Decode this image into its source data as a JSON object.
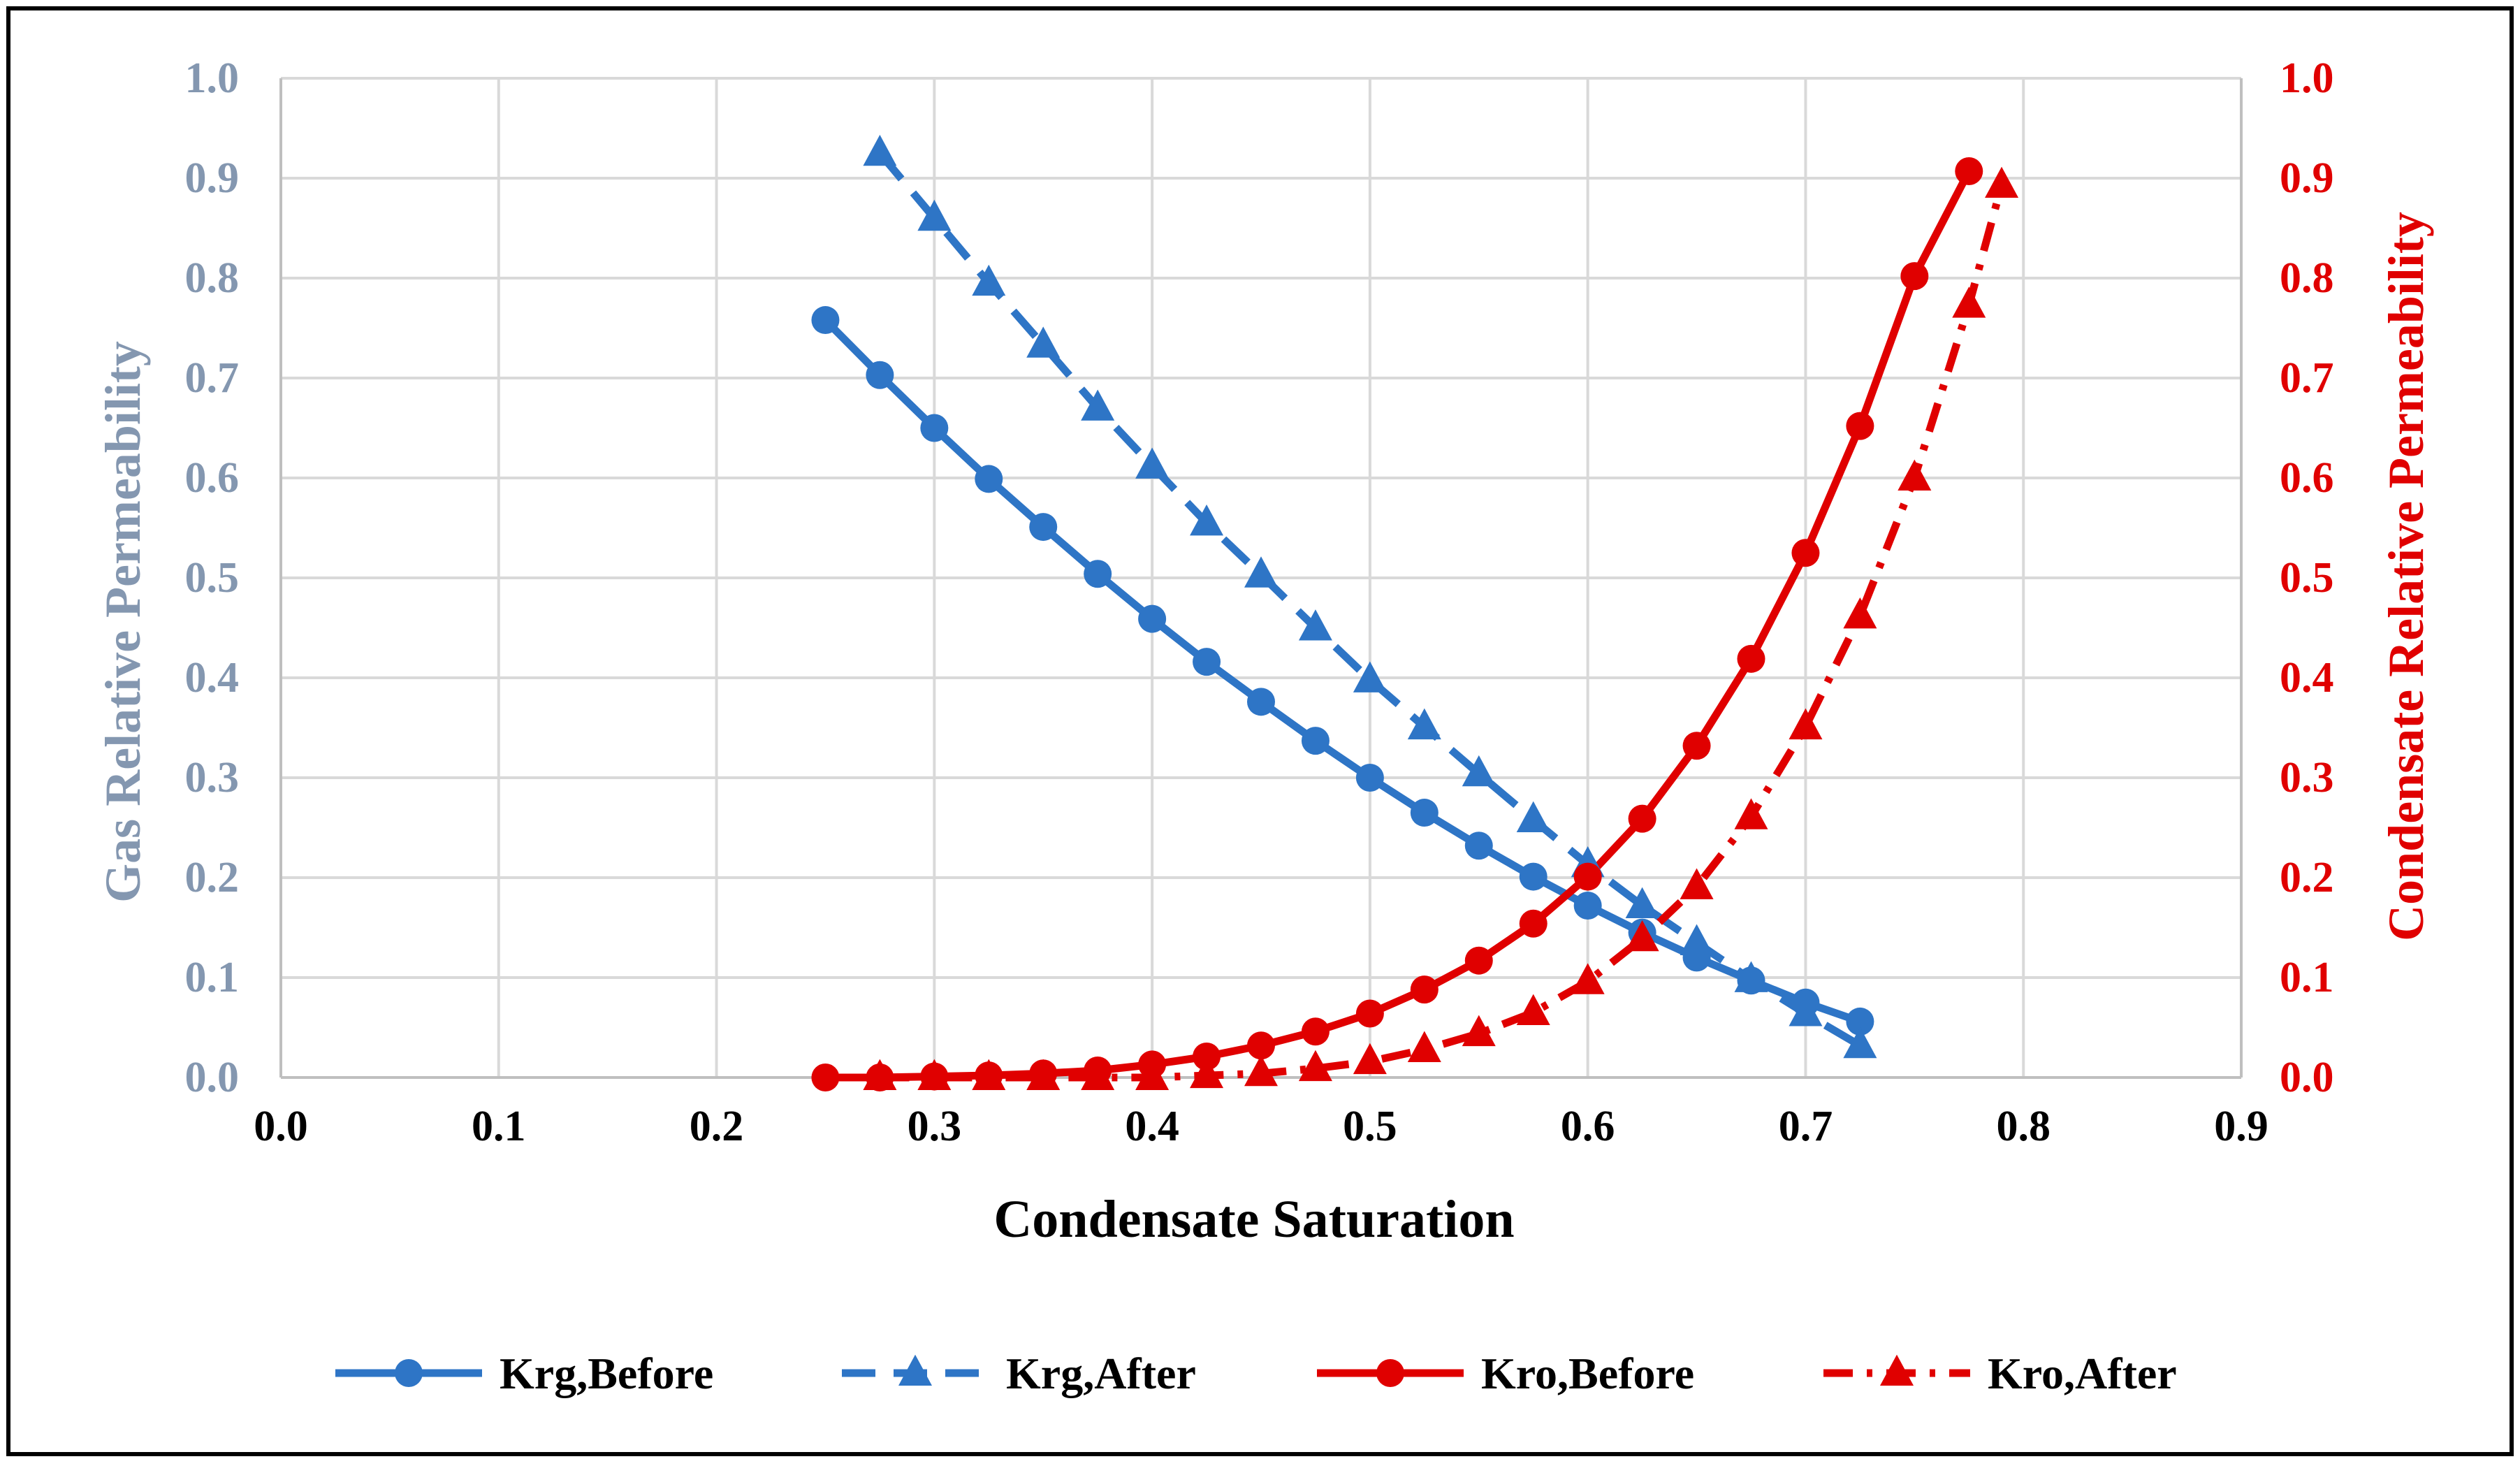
{
  "chart_data": {
    "type": "line",
    "title": "",
    "xlabel": "Condensate Saturation",
    "ylabel_left": "Gas Relative Permeability",
    "ylabel_right": "Condensate Relative Permeability",
    "xlim": [
      0.0,
      0.9
    ],
    "ylim_left": [
      0.0,
      1.0
    ],
    "ylim_right": [
      0.0,
      1.0
    ],
    "x_ticks": [
      "0.0",
      "0.1",
      "0.2",
      "0.3",
      "0.4",
      "0.5",
      "0.6",
      "0.7",
      "0.8",
      "0.9"
    ],
    "y_ticks_left": [
      "0.0",
      "0.1",
      "0.2",
      "0.3",
      "0.4",
      "0.5",
      "0.6",
      "0.7",
      "0.8",
      "0.9",
      "1.0"
    ],
    "y_ticks_right": [
      "0.0",
      "0.1",
      "0.2",
      "0.3",
      "0.4",
      "0.5",
      "0.6",
      "0.7",
      "0.8",
      "0.9",
      "1.0"
    ],
    "grid": true,
    "legend_position": "bottom",
    "colors": {
      "blue": "#2e75c6",
      "red": "#e00000",
      "left_axis_text": "#8497b0",
      "grid": "#d9d9d9"
    },
    "series": [
      {
        "name": "Krg,Before",
        "axis": "left",
        "color": "#2e75c6",
        "dash": "solid",
        "marker": "circle",
        "x": [
          0.25,
          0.275,
          0.3,
          0.325,
          0.35,
          0.375,
          0.4,
          0.425,
          0.45,
          0.475,
          0.5,
          0.525,
          0.55,
          0.575,
          0.6,
          0.625,
          0.65,
          0.675,
          0.7,
          0.725
        ],
        "y": [
          0.758,
          0.703,
          0.65,
          0.599,
          0.551,
          0.504,
          0.459,
          0.416,
          0.376,
          0.337,
          0.3,
          0.265,
          0.232,
          0.201,
          0.172,
          0.145,
          0.12,
          0.097,
          0.075,
          0.056
        ]
      },
      {
        "name": "Krg,After",
        "axis": "left",
        "color": "#2e75c6",
        "dash": "dash",
        "marker": "triangle",
        "x": [
          0.275,
          0.3,
          0.325,
          0.35,
          0.375,
          0.4,
          0.425,
          0.45,
          0.475,
          0.5,
          0.525,
          0.55,
          0.575,
          0.6,
          0.625,
          0.65,
          0.675,
          0.7,
          0.725
        ],
        "y": [
          0.925,
          0.86,
          0.795,
          0.733,
          0.67,
          0.612,
          0.555,
          0.503,
          0.45,
          0.398,
          0.351,
          0.304,
          0.258,
          0.213,
          0.172,
          0.135,
          0.098,
          0.064,
          0.032
        ]
      },
      {
        "name": "Kro,Before",
        "axis": "right",
        "color": "#e00000",
        "dash": "solid",
        "marker": "circle",
        "x": [
          0.25,
          0.275,
          0.3,
          0.325,
          0.35,
          0.375,
          0.4,
          0.425,
          0.45,
          0.475,
          0.5,
          0.525,
          0.55,
          0.575,
          0.6,
          0.625,
          0.65,
          0.675,
          0.7,
          0.725,
          0.75,
          0.775
        ],
        "y": [
          0.0,
          0.0,
          0.001,
          0.002,
          0.004,
          0.007,
          0.013,
          0.021,
          0.032,
          0.046,
          0.064,
          0.088,
          0.117,
          0.154,
          0.201,
          0.259,
          0.332,
          0.419,
          0.525,
          0.652,
          0.802,
          0.907
        ]
      },
      {
        "name": "Kro,After",
        "axis": "right",
        "color": "#e00000",
        "dash": "dashdot",
        "marker": "triangle",
        "x": [
          0.275,
          0.3,
          0.325,
          0.35,
          0.375,
          0.4,
          0.425,
          0.45,
          0.475,
          0.5,
          0.525,
          0.55,
          0.575,
          0.6,
          0.625,
          0.65,
          0.675,
          0.7,
          0.725,
          0.75,
          0.775,
          0.79
        ],
        "y": [
          0.0,
          0.0,
          0.0,
          0.0,
          0.0,
          0.0,
          0.002,
          0.004,
          0.009,
          0.016,
          0.028,
          0.044,
          0.065,
          0.096,
          0.139,
          0.191,
          0.261,
          0.351,
          0.462,
          0.6,
          0.773,
          0.893
        ]
      }
    ]
  }
}
